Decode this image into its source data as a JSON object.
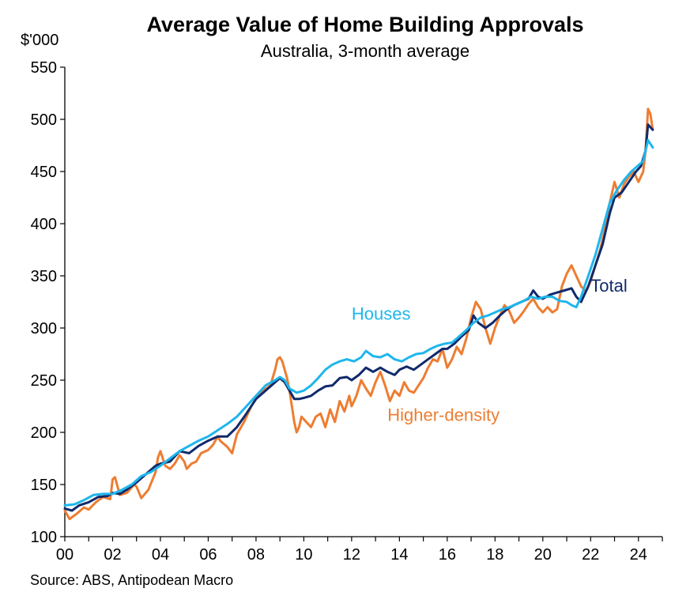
{
  "chart_data": {
    "type": "line",
    "title": "Average Value of Home Building Approvals",
    "subtitle": "Australia, 3-month average",
    "ylabel": "$'000",
    "source": "Source: ABS, Antipodean Macro",
    "xlim": [
      2000,
      2025
    ],
    "ylim": [
      100,
      550
    ],
    "x_ticks": [
      {
        "value": 2000,
        "label": "00"
      },
      {
        "value": 2002,
        "label": "02"
      },
      {
        "value": 2004,
        "label": "04"
      },
      {
        "value": 2006,
        "label": "06"
      },
      {
        "value": 2008,
        "label": "08"
      },
      {
        "value": 2010,
        "label": "10"
      },
      {
        "value": 2012,
        "label": "12"
      },
      {
        "value": 2014,
        "label": "14"
      },
      {
        "value": 2016,
        "label": "16"
      },
      {
        "value": 2018,
        "label": "18"
      },
      {
        "value": 2020,
        "label": "20"
      },
      {
        "value": 2022,
        "label": "22"
      },
      {
        "value": 2024,
        "label": "24"
      }
    ],
    "y_ticks": [
      100,
      150,
      200,
      250,
      300,
      350,
      400,
      450,
      500,
      550
    ],
    "grid": false,
    "legend": "inline labels",
    "series": [
      {
        "name": "Higher-density",
        "color": "#ED7D31",
        "points": [
          [
            2000.0,
            125
          ],
          [
            2000.2,
            117
          ],
          [
            2000.5,
            122
          ],
          [
            2000.8,
            128
          ],
          [
            2001.0,
            126
          ],
          [
            2001.3,
            133
          ],
          [
            2001.6,
            138
          ],
          [
            2001.9,
            136
          ],
          [
            2002.0,
            155
          ],
          [
            2002.1,
            157
          ],
          [
            2002.3,
            140
          ],
          [
            2002.6,
            142
          ],
          [
            2002.9,
            150
          ],
          [
            2003.0,
            148
          ],
          [
            2003.2,
            137
          ],
          [
            2003.5,
            145
          ],
          [
            2003.8,
            162
          ],
          [
            2003.9,
            176
          ],
          [
            2004.0,
            182
          ],
          [
            2004.2,
            168
          ],
          [
            2004.4,
            165
          ],
          [
            2004.6,
            170
          ],
          [
            2004.8,
            178
          ],
          [
            2005.0,
            172
          ],
          [
            2005.1,
            165
          ],
          [
            2005.3,
            170
          ],
          [
            2005.5,
            172
          ],
          [
            2005.7,
            180
          ],
          [
            2006.0,
            183
          ],
          [
            2006.2,
            188
          ],
          [
            2006.4,
            196
          ],
          [
            2006.5,
            192
          ],
          [
            2006.8,
            186
          ],
          [
            2007.0,
            180
          ],
          [
            2007.2,
            198
          ],
          [
            2007.5,
            210
          ],
          [
            2007.8,
            225
          ],
          [
            2008.0,
            232
          ],
          [
            2008.3,
            240
          ],
          [
            2008.6,
            245
          ],
          [
            2008.8,
            260
          ],
          [
            2008.9,
            270
          ],
          [
            2009.0,
            272
          ],
          [
            2009.1,
            268
          ],
          [
            2009.2,
            260
          ],
          [
            2009.3,
            252
          ],
          [
            2009.4,
            240
          ],
          [
            2009.5,
            225
          ],
          [
            2009.6,
            210
          ],
          [
            2009.7,
            200
          ],
          [
            2009.8,
            205
          ],
          [
            2009.9,
            215
          ],
          [
            2010.1,
            210
          ],
          [
            2010.3,
            205
          ],
          [
            2010.5,
            215
          ],
          [
            2010.7,
            218
          ],
          [
            2010.9,
            205
          ],
          [
            2011.1,
            222
          ],
          [
            2011.3,
            210
          ],
          [
            2011.5,
            230
          ],
          [
            2011.7,
            220
          ],
          [
            2011.9,
            235
          ],
          [
            2012.0,
            225
          ],
          [
            2012.2,
            235
          ],
          [
            2012.4,
            250
          ],
          [
            2012.6,
            242
          ],
          [
            2012.8,
            235
          ],
          [
            2013.0,
            248
          ],
          [
            2013.2,
            258
          ],
          [
            2013.4,
            245
          ],
          [
            2013.6,
            230
          ],
          [
            2013.8,
            240
          ],
          [
            2014.0,
            235
          ],
          [
            2014.2,
            248
          ],
          [
            2014.4,
            240
          ],
          [
            2014.6,
            238
          ],
          [
            2014.8,
            245
          ],
          [
            2015.0,
            252
          ],
          [
            2015.2,
            262
          ],
          [
            2015.4,
            270
          ],
          [
            2015.6,
            268
          ],
          [
            2015.8,
            280
          ],
          [
            2016.0,
            262
          ],
          [
            2016.2,
            270
          ],
          [
            2016.4,
            282
          ],
          [
            2016.6,
            275
          ],
          [
            2016.8,
            290
          ],
          [
            2017.0,
            310
          ],
          [
            2017.2,
            325
          ],
          [
            2017.4,
            318
          ],
          [
            2017.6,
            300
          ],
          [
            2017.8,
            285
          ],
          [
            2018.0,
            300
          ],
          [
            2018.2,
            312
          ],
          [
            2018.4,
            322
          ],
          [
            2018.6,
            316
          ],
          [
            2018.8,
            305
          ],
          [
            2019.0,
            310
          ],
          [
            2019.2,
            316
          ],
          [
            2019.4,
            323
          ],
          [
            2019.6,
            328
          ],
          [
            2019.8,
            320
          ],
          [
            2020.0,
            315
          ],
          [
            2020.2,
            320
          ],
          [
            2020.4,
            315
          ],
          [
            2020.6,
            318
          ],
          [
            2020.8,
            340
          ],
          [
            2021.0,
            352
          ],
          [
            2021.2,
            360
          ],
          [
            2021.4,
            350
          ],
          [
            2021.6,
            340
          ],
          [
            2021.8,
            335
          ],
          [
            2022.0,
            345
          ],
          [
            2022.2,
            360
          ],
          [
            2022.4,
            375
          ],
          [
            2022.6,
            395
          ],
          [
            2022.8,
            420
          ],
          [
            2023.0,
            440
          ],
          [
            2023.2,
            425
          ],
          [
            2023.4,
            438
          ],
          [
            2023.6,
            445
          ],
          [
            2023.8,
            450
          ],
          [
            2024.0,
            440
          ],
          [
            2024.2,
            450
          ],
          [
            2024.3,
            470
          ],
          [
            2024.4,
            510
          ],
          [
            2024.5,
            505
          ],
          [
            2024.6,
            490
          ]
        ]
      },
      {
        "name": "Total",
        "color": "#102A6B",
        "points": [
          [
            2000.0,
            127
          ],
          [
            2000.3,
            125
          ],
          [
            2000.6,
            130
          ],
          [
            2001.0,
            133
          ],
          [
            2001.4,
            138
          ],
          [
            2001.8,
            139
          ],
          [
            2002.0,
            142
          ],
          [
            2002.3,
            141
          ],
          [
            2002.6,
            145
          ],
          [
            2003.0,
            152
          ],
          [
            2003.4,
            160
          ],
          [
            2003.8,
            168
          ],
          [
            2004.0,
            170
          ],
          [
            2004.4,
            172
          ],
          [
            2004.8,
            182
          ],
          [
            2005.2,
            180
          ],
          [
            2005.6,
            187
          ],
          [
            2006.0,
            192
          ],
          [
            2006.4,
            196
          ],
          [
            2006.8,
            196
          ],
          [
            2007.2,
            205
          ],
          [
            2007.6,
            218
          ],
          [
            2008.0,
            232
          ],
          [
            2008.4,
            240
          ],
          [
            2008.8,
            248
          ],
          [
            2009.0,
            252
          ],
          [
            2009.2,
            248
          ],
          [
            2009.4,
            240
          ],
          [
            2009.6,
            232
          ],
          [
            2009.8,
            232
          ],
          [
            2010.0,
            233
          ],
          [
            2010.3,
            235
          ],
          [
            2010.6,
            240
          ],
          [
            2010.9,
            244
          ],
          [
            2011.2,
            245
          ],
          [
            2011.5,
            252
          ],
          [
            2011.8,
            253
          ],
          [
            2012.0,
            250
          ],
          [
            2012.3,
            255
          ],
          [
            2012.6,
            262
          ],
          [
            2012.9,
            258
          ],
          [
            2013.2,
            262
          ],
          [
            2013.5,
            258
          ],
          [
            2013.8,
            255
          ],
          [
            2014.0,
            260
          ],
          [
            2014.3,
            263
          ],
          [
            2014.6,
            260
          ],
          [
            2014.9,
            265
          ],
          [
            2015.2,
            270
          ],
          [
            2015.5,
            275
          ],
          [
            2015.8,
            280
          ],
          [
            2016.0,
            280
          ],
          [
            2016.3,
            285
          ],
          [
            2016.6,
            292
          ],
          [
            2016.9,
            298
          ],
          [
            2017.1,
            312
          ],
          [
            2017.3,
            305
          ],
          [
            2017.6,
            300
          ],
          [
            2017.9,
            305
          ],
          [
            2018.2,
            312
          ],
          [
            2018.5,
            318
          ],
          [
            2018.8,
            322
          ],
          [
            2019.1,
            325
          ],
          [
            2019.4,
            328
          ],
          [
            2019.6,
            336
          ],
          [
            2019.8,
            330
          ],
          [
            2020.0,
            328
          ],
          [
            2020.3,
            332
          ],
          [
            2020.6,
            334
          ],
          [
            2020.9,
            336
          ],
          [
            2021.2,
            338
          ],
          [
            2021.4,
            330
          ],
          [
            2021.6,
            325
          ],
          [
            2021.9,
            340
          ],
          [
            2022.2,
            360
          ],
          [
            2022.5,
            380
          ],
          [
            2022.8,
            410
          ],
          [
            2023.0,
            425
          ],
          [
            2023.3,
            430
          ],
          [
            2023.6,
            440
          ],
          [
            2023.9,
            450
          ],
          [
            2024.1,
            455
          ],
          [
            2024.3,
            470
          ],
          [
            2024.4,
            495
          ],
          [
            2024.6,
            490
          ]
        ]
      },
      {
        "name": "Houses",
        "color": "#1EB6EC",
        "points": [
          [
            2000.0,
            130
          ],
          [
            2000.4,
            131
          ],
          [
            2000.8,
            135
          ],
          [
            2001.2,
            140
          ],
          [
            2001.6,
            141
          ],
          [
            2002.0,
            141
          ],
          [
            2002.4,
            145
          ],
          [
            2002.8,
            150
          ],
          [
            2003.2,
            158
          ],
          [
            2003.6,
            162
          ],
          [
            2004.0,
            168
          ],
          [
            2004.4,
            175
          ],
          [
            2004.8,
            182
          ],
          [
            2005.2,
            187
          ],
          [
            2005.6,
            192
          ],
          [
            2006.0,
            196
          ],
          [
            2006.4,
            202
          ],
          [
            2006.8,
            208
          ],
          [
            2007.2,
            215
          ],
          [
            2007.6,
            225
          ],
          [
            2008.0,
            235
          ],
          [
            2008.4,
            245
          ],
          [
            2008.8,
            250
          ],
          [
            2009.0,
            253
          ],
          [
            2009.2,
            250
          ],
          [
            2009.4,
            242
          ],
          [
            2009.7,
            238
          ],
          [
            2010.0,
            240
          ],
          [
            2010.3,
            245
          ],
          [
            2010.6,
            252
          ],
          [
            2010.9,
            260
          ],
          [
            2011.2,
            265
          ],
          [
            2011.5,
            268
          ],
          [
            2011.8,
            270
          ],
          [
            2012.1,
            268
          ],
          [
            2012.4,
            272
          ],
          [
            2012.6,
            278
          ],
          [
            2012.9,
            273
          ],
          [
            2013.2,
            272
          ],
          [
            2013.5,
            275
          ],
          [
            2013.8,
            270
          ],
          [
            2014.1,
            268
          ],
          [
            2014.4,
            272
          ],
          [
            2014.7,
            275
          ],
          [
            2015.0,
            276
          ],
          [
            2015.3,
            280
          ],
          [
            2015.6,
            283
          ],
          [
            2015.9,
            285
          ],
          [
            2016.2,
            286
          ],
          [
            2016.5,
            292
          ],
          [
            2016.8,
            298
          ],
          [
            2017.1,
            305
          ],
          [
            2017.4,
            310
          ],
          [
            2017.7,
            312
          ],
          [
            2018.0,
            315
          ],
          [
            2018.3,
            318
          ],
          [
            2018.6,
            320
          ],
          [
            2018.9,
            323
          ],
          [
            2019.2,
            326
          ],
          [
            2019.5,
            330
          ],
          [
            2019.8,
            328
          ],
          [
            2020.1,
            330
          ],
          [
            2020.4,
            330
          ],
          [
            2020.7,
            326
          ],
          [
            2021.0,
            325
          ],
          [
            2021.2,
            322
          ],
          [
            2021.4,
            320
          ],
          [
            2021.6,
            330
          ],
          [
            2021.9,
            350
          ],
          [
            2022.2,
            370
          ],
          [
            2022.5,
            395
          ],
          [
            2022.8,
            420
          ],
          [
            2023.1,
            432
          ],
          [
            2023.4,
            442
          ],
          [
            2023.7,
            450
          ],
          [
            2024.0,
            456
          ],
          [
            2024.2,
            460
          ],
          [
            2024.4,
            480
          ],
          [
            2024.6,
            473
          ]
        ]
      }
    ],
    "annotations": [
      {
        "text": "Houses",
        "color": "#1EB6EC",
        "x": 2012.0,
        "y": 308
      },
      {
        "text": "Total",
        "color": "#102A6B",
        "x": 2022.0,
        "y": 335
      },
      {
        "text": "Higher-density",
        "color": "#ED7D31",
        "x": 2013.5,
        "y": 211
      }
    ]
  }
}
